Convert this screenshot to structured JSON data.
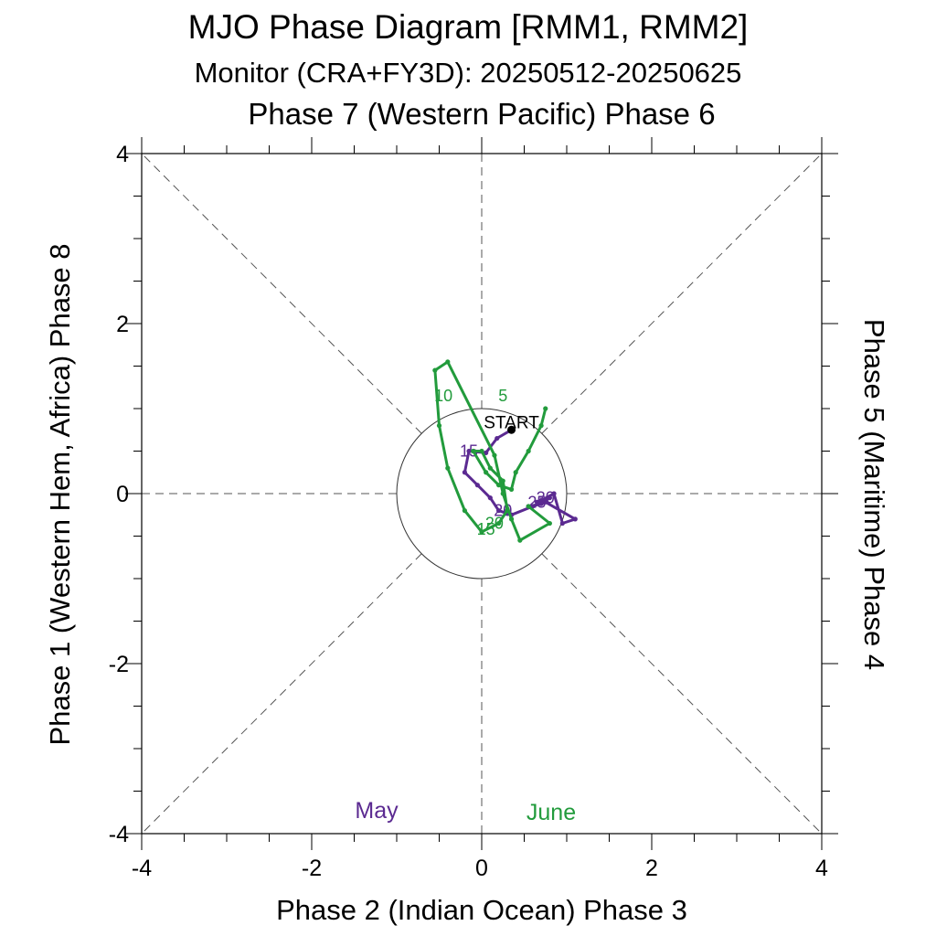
{
  "title": "MJO Phase Diagram [RMM1, RMM2]",
  "subtitle": "Monitor (CRA+FY3D): 20250512-20250625",
  "phase_labels": {
    "top": "Phase 7 (Western Pacific) Phase 6",
    "bottom": "Phase 2 (Indian Ocean) Phase 3",
    "left": "Phase 1 (Western Hem, Africa) Phase 8",
    "right": "Phase 5 (Maritime) Phase 4"
  },
  "start_label": "START",
  "colors": {
    "may": "#5b2a91",
    "june": "#229b3c",
    "start": "#000000"
  },
  "chart_data": {
    "type": "scatter",
    "title": "MJO Phase Diagram [RMM1, RMM2]",
    "subtitle": "Monitor (CRA+FY3D): 20250512-20250625",
    "xlabel": "Phase 2 (Indian Ocean) Phase 3",
    "ylabel": "Phase 1 (Western Hem, Africa) Phase 8",
    "xlim": [
      -4,
      4
    ],
    "ylim": [
      -4,
      4
    ],
    "xticks": [
      "-4",
      "-2",
      "0",
      "2",
      "4"
    ],
    "yticks": [
      "-4",
      "-2",
      "0",
      "2",
      "4"
    ],
    "grid": "diagonal dashed phase lines",
    "unit_circle_radius": 1,
    "legend": [
      "May",
      "June"
    ],
    "series": [
      {
        "name": "May",
        "days": [
          12,
          13,
          14,
          15,
          16,
          17,
          18,
          19,
          20,
          21,
          22,
          23,
          24,
          25,
          26,
          27,
          28,
          29,
          30,
          31
        ],
        "x": [
          0.35,
          0.18,
          0.05,
          -0.15,
          -0.2,
          -0.05,
          0.1,
          0.2,
          0.35,
          0.6,
          0.75,
          1.1,
          0.95,
          0.85,
          0.7,
          0.65,
          0.72,
          0.8,
          0.7,
          0.55
        ],
        "y": [
          0.75,
          0.65,
          0.48,
          0.5,
          0.25,
          0.1,
          -0.05,
          -0.2,
          -0.25,
          -0.15,
          -0.1,
          -0.3,
          -0.35,
          0.0,
          -0.08,
          -0.1,
          -0.1,
          -0.05,
          -0.12,
          -0.15
        ],
        "day_labels": [
          {
            "text": "15",
            "x": -0.15,
            "y": 0.5
          },
          {
            "text": "20",
            "x": 0.25,
            "y": -0.2
          },
          {
            "text": "25",
            "x": 0.65,
            "y": -0.1
          },
          {
            "text": "30",
            "x": 0.75,
            "y": -0.05
          }
        ]
      },
      {
        "name": "June",
        "days": [
          1,
          2,
          3,
          4,
          5,
          6,
          7,
          8,
          9,
          10,
          11,
          12,
          13,
          14,
          15,
          16,
          17,
          18,
          19,
          20,
          21,
          22,
          23,
          24,
          25
        ],
        "x": [
          0.55,
          0.8,
          0.45,
          0.35,
          0.25,
          0.15,
          -0.4,
          -0.55,
          -0.5,
          -0.4,
          -0.2,
          0.0,
          0.2,
          0.3,
          0.25,
          0.1,
          0.0,
          -0.1,
          0.05,
          0.2,
          0.35,
          0.4,
          0.55,
          0.7,
          0.75
        ],
        "y": [
          -0.15,
          -0.35,
          -0.55,
          -0.3,
          0.0,
          0.45,
          1.55,
          1.45,
          0.8,
          0.3,
          -0.2,
          -0.45,
          -0.35,
          -0.2,
          0.15,
          0.3,
          0.5,
          0.5,
          0.25,
          0.1,
          0.05,
          0.25,
          0.5,
          0.8,
          1.0
        ],
        "day_labels": [
          {
            "text": "5",
            "x": 0.25,
            "y": 1.15
          },
          {
            "text": "10",
            "x": -0.45,
            "y": 1.15
          },
          {
            "text": "15",
            "x": 0.05,
            "y": -0.42
          },
          {
            "text": "20",
            "x": 0.15,
            "y": -0.35
          }
        ]
      }
    ]
  }
}
